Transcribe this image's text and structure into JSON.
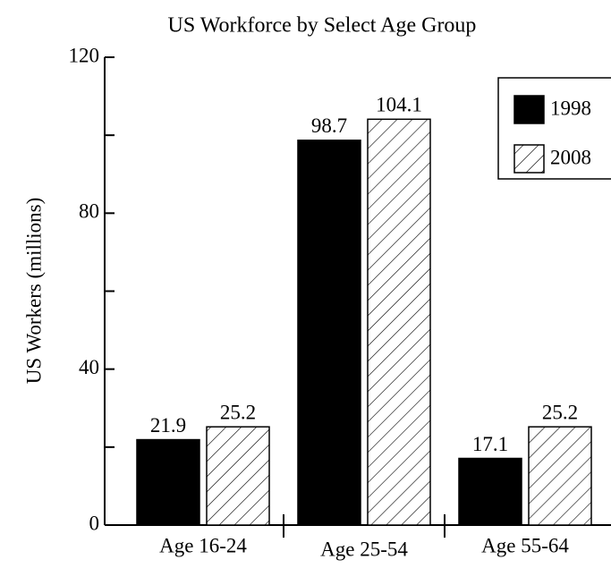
{
  "chart_data": {
    "type": "bar",
    "title": "US Workforce by Select Age Group",
    "y_label": "US Workers (millions)",
    "categories": [
      "Age 16-24",
      "Age 25-54",
      "Age 55-64"
    ],
    "series": [
      {
        "name": "1998",
        "color": "#000000",
        "pattern": "solid",
        "values": [
          21.9,
          98.7,
          17.1
        ]
      },
      {
        "name": "2008",
        "color": "#ffffff",
        "pattern": "hatch",
        "values": [
          25.2,
          104.1,
          25.2
        ]
      }
    ],
    "ylim": [
      0,
      120
    ],
    "yticks": [
      0,
      40,
      80,
      120
    ],
    "minor_yticks": [
      20,
      60,
      100
    ],
    "grid": false,
    "legend": "upper right"
  }
}
